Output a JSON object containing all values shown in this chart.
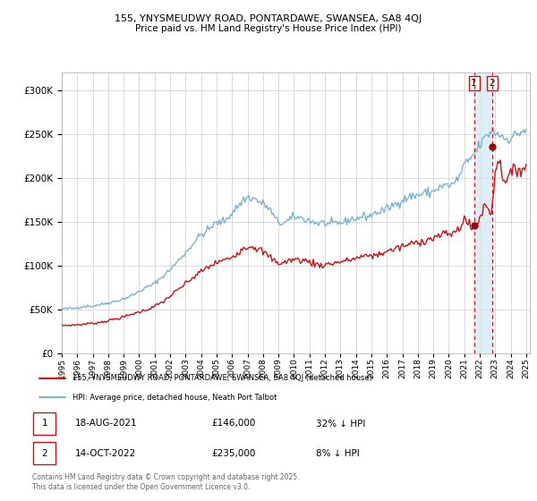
{
  "title1": "155, YNYSMEUDWY ROAD, PONTARDAWE, SWANSEA, SA8 4QJ",
  "title2": "Price paid vs. HM Land Registry's House Price Index (HPI)",
  "ylim": [
    0,
    320000
  ],
  "yticks": [
    0,
    50000,
    100000,
    150000,
    200000,
    250000,
    300000
  ],
  "hpi_color": "#7ab3d4",
  "price_color": "#cc1111",
  "dot_color": "#aa0000",
  "shade_color": "#d0e8f5",
  "legend_label_price": "155, YNYSMEUDWY ROAD, PONTARDAWE, SWANSEA, SA8 4QJ (detached house)",
  "legend_label_hpi": "HPI: Average price, detached house, Neath Port Talbot",
  "transaction1_date": "18-AUG-2021",
  "transaction1_price": "£146,000",
  "transaction1_note": "32% ↓ HPI",
  "transaction2_date": "14-OCT-2022",
  "transaction2_price": "£235,000",
  "transaction2_note": "8% ↓ HPI",
  "footer": "Contains HM Land Registry data © Crown copyright and database right 2025.\nThis data is licensed under the Open Government Licence v3.0.",
  "vline1_x": 2021.63,
  "vline2_x": 2022.79,
  "dot1_y": 146000,
  "dot2_y": 235000,
  "xmin": 1995.0,
  "xmax": 2025.25
}
